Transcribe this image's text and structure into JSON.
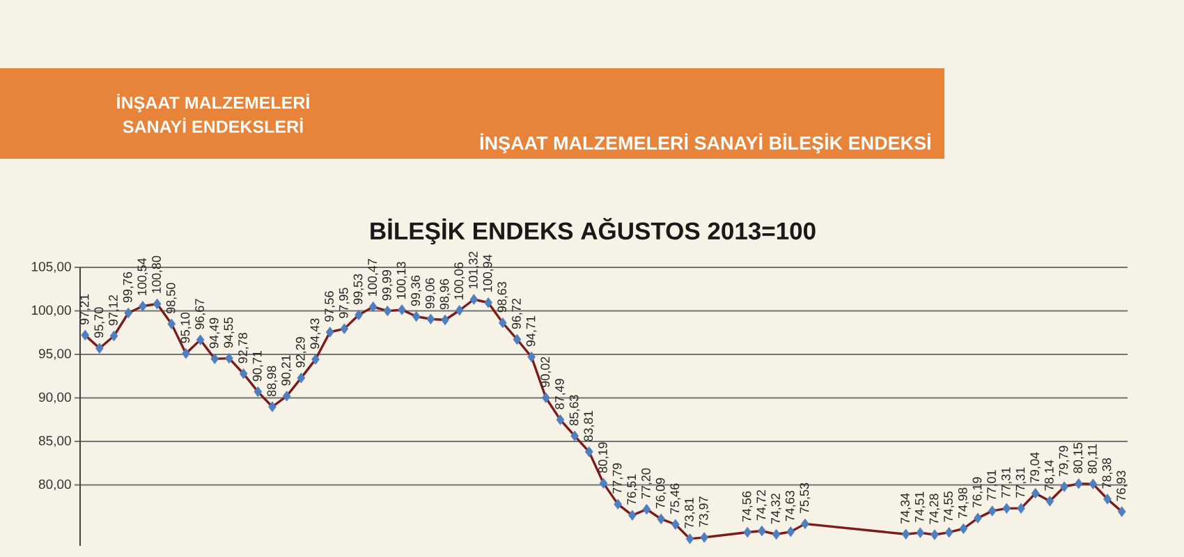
{
  "chart_data": {
    "type": "line",
    "title": "BİLEŞİK ENDEKS AĞUSTOS 2013=100",
    "subtitle": "İNŞAAT MALZEMELERİ SANAYİ BİLEŞİK ENDEKSİ",
    "annotations": [
      "İNŞAAT MALZEMELERİ",
      "SANAYİ ENDEKSLERİ"
    ],
    "categories": [
      null,
      null,
      null,
      null,
      null,
      null,
      null,
      null,
      null,
      null,
      null,
      null,
      null,
      null,
      null,
      null,
      null,
      null,
      null,
      null,
      null,
      null,
      null,
      null,
      null,
      null,
      null,
      null,
      null,
      null,
      null,
      null,
      null,
      null,
      null,
      null,
      null,
      null,
      null,
      null,
      null,
      null,
      null,
      null,
      null,
      null,
      null,
      null,
      null,
      null,
      null,
      null,
      null,
      null,
      null,
      null,
      null,
      null,
      null,
      null,
      null,
      null,
      null,
      null,
      null,
      null,
      null,
      null,
      null,
      null,
      null,
      null,
      null
    ],
    "series": [
      {
        "color": "#7b1c1c",
        "values": [
          97.21,
          95.7,
          97.12,
          99.76,
          100.54,
          100.8,
          98.5,
          95.1,
          96.67,
          94.49,
          94.55,
          92.78,
          90.71,
          88.98,
          90.21,
          92.29,
          94.43,
          97.56,
          97.95,
          99.53,
          100.47,
          99.99,
          100.13,
          99.36,
          99.06,
          98.96,
          100.06,
          101.32,
          100.94,
          98.63,
          96.72,
          94.71,
          90.02,
          87.49,
          85.63,
          83.81,
          80.19,
          77.79,
          76.51,
          77.2,
          76.09,
          75.46,
          73.81,
          73.97,
          null,
          null,
          74.56,
          74.72,
          74.32,
          74.63,
          75.53,
          null,
          null,
          null,
          null,
          null,
          null,
          74.34,
          74.51,
          74.28,
          74.55,
          74.98,
          76.19,
          77.01,
          77.31,
          77.31,
          79.04,
          78.14,
          79.79,
          80.15,
          80.11,
          78.38,
          76.93
        ],
        "value_labels": [
          "97,21",
          "95,70",
          "97,12",
          "99,76",
          "100,54",
          "100,80",
          "98,50",
          "95,10",
          "96,67",
          "94,49",
          "94,55",
          "92,78",
          "90,71",
          "88,98",
          "90,21",
          "92,29",
          "94,43",
          "97,56",
          "97,95",
          "99,53",
          "100,47",
          "99,99",
          "100,13",
          "99,36",
          "99,06",
          "98,96",
          "100,06",
          "101,32",
          "100,94",
          "98,63",
          "96,72",
          "94,71",
          "90,02",
          "87,49",
          "85,63",
          "83,81",
          "80,19",
          "77,79",
          "76,51",
          "77,20",
          "76,09",
          "75,46",
          "73,81",
          "73,97",
          null,
          null,
          "74,56",
          "74,72",
          "74,32",
          "74,63",
          "75,53",
          null,
          null,
          null,
          null,
          null,
          null,
          "74,34",
          "74,51",
          "74,28",
          "74,55",
          "74,98",
          "76,19",
          "77,01",
          "77,31",
          "77,31",
          "79,04",
          "78,14",
          "79,79",
          "80,15",
          "80,11",
          "78,38",
          "76,93"
        ]
      }
    ],
    "ylim": [
      73,
      105
    ],
    "yticks": [
      {
        "value": 80,
        "label": "80,00"
      },
      {
        "value": 85,
        "label": "85,00"
      },
      {
        "value": 90,
        "label": "90,00"
      },
      {
        "value": 95,
        "label": "95,00"
      },
      {
        "value": 100,
        "label": "100,00"
      },
      {
        "value": 105,
        "label": "105,00"
      }
    ],
    "grid": "y",
    "marker": "diamond",
    "line_style": "solid",
    "tick_labels": "y"
  }
}
